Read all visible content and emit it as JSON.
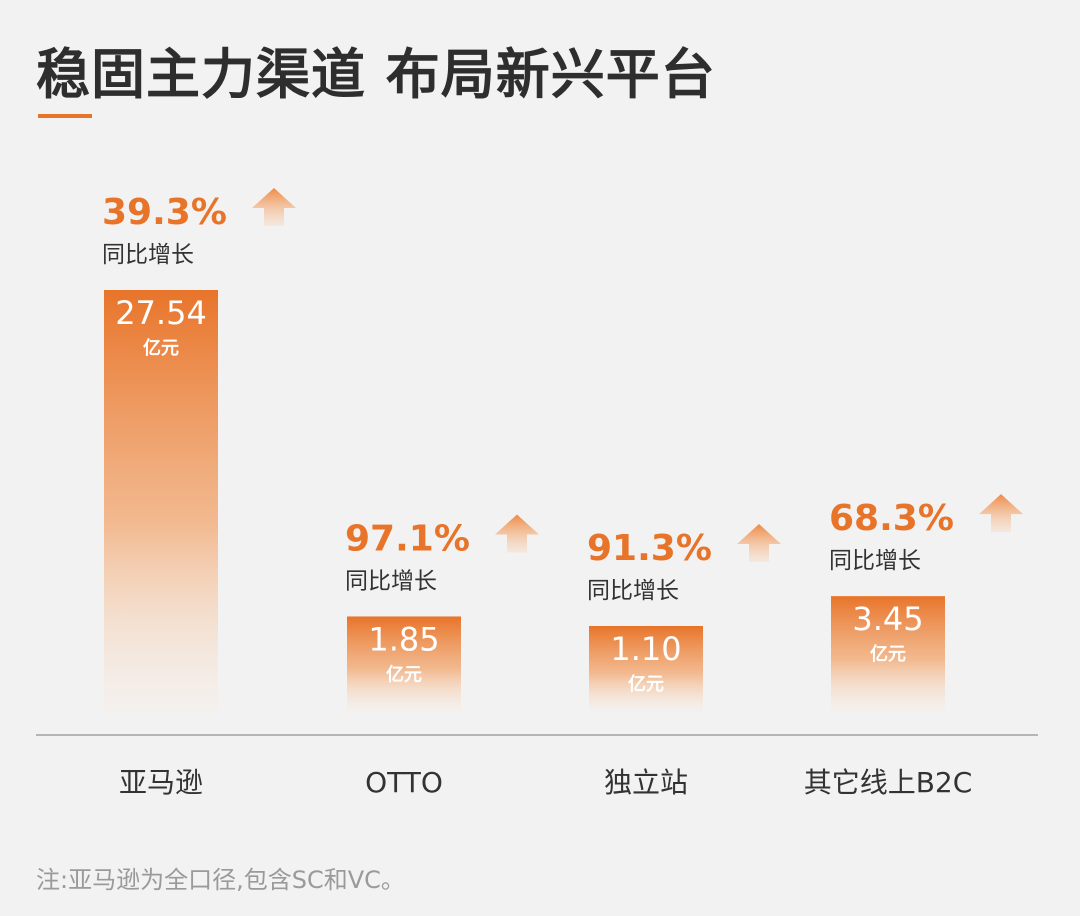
{
  "header": {
    "title": "稳固主力渠道 布局新兴平台"
  },
  "chart_data": {
    "type": "bar",
    "title": "稳固主力渠道 布局新兴平台",
    "categories": [
      "亚马逊",
      "OTTO",
      "独立站",
      "其它线上B2C"
    ],
    "values": [
      27.54,
      1.85,
      1.1,
      3.45
    ],
    "value_labels": [
      "27.54",
      "1.85",
      "1.10",
      "3.45"
    ],
    "unit": "亿元",
    "growth": [
      "39.3%",
      "97.1%",
      "91.3%",
      "68.3%"
    ],
    "growth_label": "同比增长",
    "xlabel": "",
    "ylabel": "",
    "grid": false
  },
  "footnote": "注:亚马逊为全口径,包含SC和VC。",
  "colors": {
    "accent": "#e8742a",
    "bar_top": "#e8742a",
    "text_dark": "#2e2e2e",
    "text_gray": "#9a9a9a",
    "axis": "#b5b5b5"
  }
}
